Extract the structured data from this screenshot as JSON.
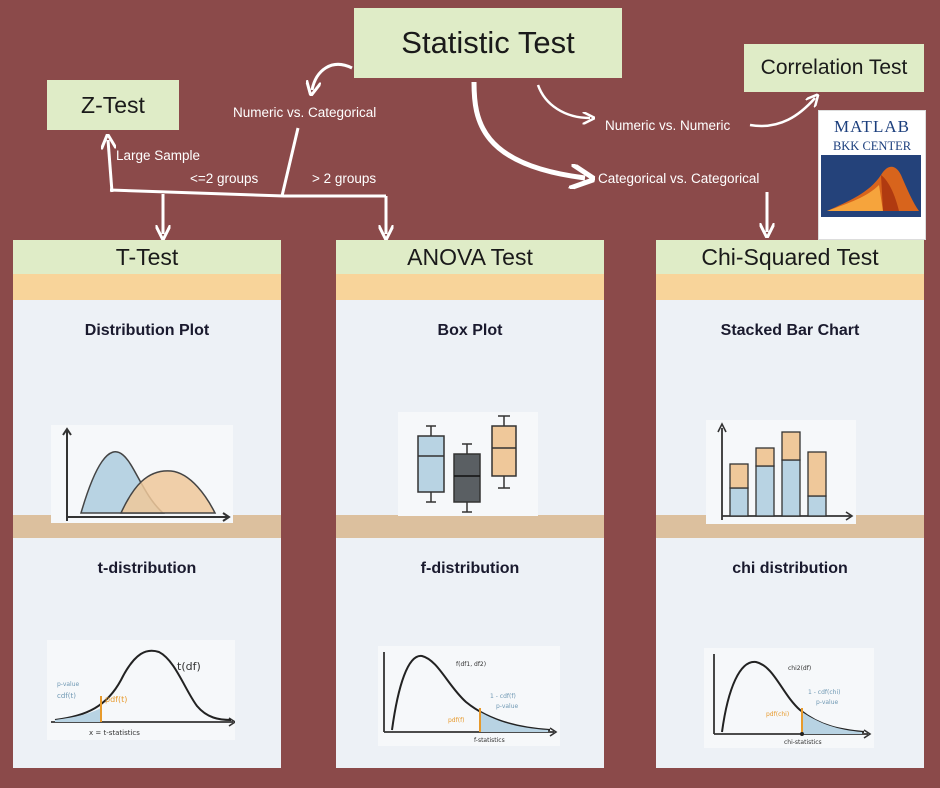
{
  "main_node": {
    "label": "Statistic Test"
  },
  "z_test": {
    "label": "Z-Test"
  },
  "correlation": {
    "label": "Correlation Test"
  },
  "edge_labels": {
    "numeric_categorical": "Numeric vs. Categorical",
    "numeric_numeric": "Numeric vs. Numeric",
    "categorical_categorical": "Categorical vs. Categorical",
    "large_sample": "Large Sample",
    "le2_groups": "<=2 groups",
    "gt2_groups": "> 2 groups"
  },
  "logo": {
    "line1": "MATLAB",
    "line2": "BKK CENTER"
  },
  "columns": [
    {
      "title": "T-Test",
      "plot_title": "Distribution Plot",
      "dist_title": "t-distribution",
      "annotations": {
        "curve": "t(df)",
        "left": "p-value",
        "pdf": "pdf(t)",
        "cdf": "cdf(t)",
        "axis": "x = t-statistics"
      }
    },
    {
      "title": "ANOVA Test",
      "plot_title": "Box Plot",
      "dist_title": "f-distribution",
      "annotations": {
        "curve": "f(df1, df2)",
        "pdf": "pdf(f)",
        "cdf": "1 - cdf(f)",
        "pv": "p-value",
        "axis": "f-statistics"
      }
    },
    {
      "title": "Chi-Squared Test",
      "plot_title": "Stacked Bar Chart",
      "dist_title": "chi distribution",
      "annotations": {
        "curve": "chi2(df)",
        "pdf": "pdf(chi)",
        "cdf": "1 - cdf(chi)",
        "pv": "p-value",
        "axis": "chi-statistics"
      }
    }
  ],
  "colors": {
    "background": "#8b4a4a",
    "node": "#dfecc7",
    "band": "#f8d49a",
    "band2": "#dcc09e",
    "panel": "#edf1f6",
    "blue": "#b8d3e3",
    "orange": "#efc89a",
    "dark": "#5a5f63"
  }
}
